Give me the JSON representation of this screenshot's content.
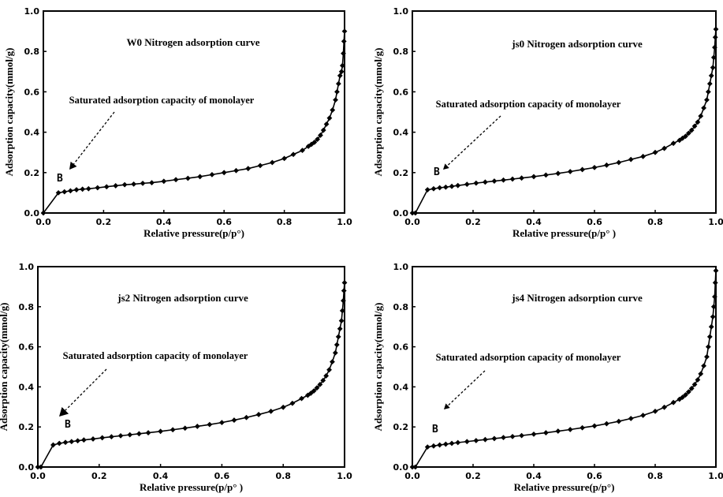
{
  "chart_data": [
    {
      "type": "line",
      "title": "W0 Nitrogen adsorption curve",
      "xlabel": "Relative pressure(p/p°)",
      "ylabel": "Adsorption capacity(mmol/g)",
      "xlim": [
        0,
        1.0
      ],
      "ylim": [
        0,
        1.0
      ],
      "xticks": [
        "0.0",
        "0.2",
        "0.4",
        "0.6",
        "0.8",
        "1.0"
      ],
      "yticks": [
        "0.0",
        "0.2",
        "0.4",
        "0.6",
        "0.8",
        "1.0"
      ],
      "annotation": "Saturated adsorption capacity of monolayer",
      "point_label": {
        "text": "B",
        "x": 0.05,
        "y": 0.1
      },
      "series": [
        {
          "x": [
            0.0,
            0.05,
            0.07,
            0.09,
            0.11,
            0.13,
            0.15,
            0.18,
            0.21,
            0.24,
            0.27,
            0.3,
            0.33,
            0.36,
            0.4,
            0.44,
            0.48,
            0.52,
            0.56,
            0.6,
            0.64,
            0.68,
            0.72,
            0.76,
            0.8,
            0.83,
            0.86,
            0.88,
            0.89,
            0.9,
            0.91,
            0.92,
            0.93,
            0.94,
            0.95,
            0.96,
            0.97,
            0.975,
            0.98,
            0.985,
            0.99,
            0.993,
            0.996,
            0.998,
            1.0
          ],
          "values": [
            0.0,
            0.1,
            0.105,
            0.11,
            0.115,
            0.118,
            0.12,
            0.125,
            0.13,
            0.135,
            0.14,
            0.143,
            0.147,
            0.15,
            0.157,
            0.165,
            0.172,
            0.18,
            0.19,
            0.2,
            0.21,
            0.22,
            0.235,
            0.25,
            0.27,
            0.29,
            0.31,
            0.33,
            0.34,
            0.35,
            0.365,
            0.385,
            0.41,
            0.44,
            0.47,
            0.51,
            0.56,
            0.6,
            0.64,
            0.68,
            0.7,
            0.73,
            0.79,
            0.85,
            0.9
          ]
        }
      ]
    },
    {
      "type": "line",
      "title": "js0  Nitrogen adsorption curve",
      "xlabel": "Relative pressure(p/p°  )",
      "ylabel": "Adsorption capacity(mmol/g)",
      "xlim": [
        0,
        1.0
      ],
      "ylim": [
        0,
        1.0
      ],
      "xticks": [
        "0.0",
        "0.2",
        "0.4",
        "0.6",
        "0.8",
        "1.0"
      ],
      "yticks": [
        "0.0",
        "0.2",
        "0.4",
        "0.6",
        "0.8",
        "1.0"
      ],
      "annotation": "Saturated adsorption capacity of monolayer",
      "point_label": {
        "text": "B",
        "x": 0.05,
        "y": 0.11
      },
      "series": [
        {
          "x": [
            0.0,
            0.01,
            0.05,
            0.07,
            0.09,
            0.11,
            0.13,
            0.15,
            0.18,
            0.21,
            0.24,
            0.27,
            0.3,
            0.33,
            0.36,
            0.4,
            0.44,
            0.48,
            0.52,
            0.56,
            0.6,
            0.64,
            0.68,
            0.72,
            0.76,
            0.8,
            0.83,
            0.86,
            0.88,
            0.89,
            0.9,
            0.91,
            0.92,
            0.93,
            0.94,
            0.95,
            0.96,
            0.97,
            0.975,
            0.98,
            0.985,
            0.99,
            0.993,
            0.996,
            0.998,
            1.0
          ],
          "values": [
            0.0,
            0.0,
            0.115,
            0.12,
            0.125,
            0.128,
            0.132,
            0.136,
            0.142,
            0.148,
            0.153,
            0.158,
            0.163,
            0.168,
            0.173,
            0.18,
            0.188,
            0.196,
            0.205,
            0.215,
            0.225,
            0.237,
            0.25,
            0.265,
            0.28,
            0.3,
            0.32,
            0.345,
            0.36,
            0.37,
            0.38,
            0.395,
            0.41,
            0.43,
            0.45,
            0.48,
            0.52,
            0.56,
            0.6,
            0.64,
            0.68,
            0.72,
            0.77,
            0.82,
            0.87,
            0.91
          ]
        }
      ]
    },
    {
      "type": "line",
      "title": "js2 Nitrogen adsorption curve",
      "xlabel": "Relative pressure(p/p°  )",
      "ylabel": "Adsorption capacity(mmol/g)",
      "xlim": [
        0,
        1.0
      ],
      "ylim": [
        0,
        1.0
      ],
      "xticks": [
        "0.0",
        "0.2",
        "0.4",
        "0.6",
        "0.8",
        "1.0"
      ],
      "yticks": [
        "0.0",
        "0.2",
        "0.4",
        "0.6",
        "0.8",
        "1.0"
      ],
      "annotation": "Saturated adsorption capacity of monolayer",
      "point_label": {
        "text": "B",
        "x": 0.05,
        "y": 0.11
      },
      "series": [
        {
          "x": [
            0.0,
            0.01,
            0.05,
            0.07,
            0.09,
            0.11,
            0.13,
            0.15,
            0.18,
            0.21,
            0.24,
            0.27,
            0.3,
            0.33,
            0.36,
            0.4,
            0.44,
            0.48,
            0.52,
            0.56,
            0.6,
            0.64,
            0.68,
            0.72,
            0.76,
            0.8,
            0.83,
            0.86,
            0.88,
            0.89,
            0.9,
            0.91,
            0.92,
            0.93,
            0.94,
            0.95,
            0.96,
            0.97,
            0.975,
            0.98,
            0.985,
            0.99,
            0.993,
            0.996,
            0.998,
            1.0
          ],
          "values": [
            0.0,
            0.0,
            0.11,
            0.118,
            0.123,
            0.127,
            0.131,
            0.135,
            0.14,
            0.146,
            0.151,
            0.156,
            0.161,
            0.166,
            0.171,
            0.178,
            0.186,
            0.194,
            0.203,
            0.212,
            0.222,
            0.234,
            0.247,
            0.262,
            0.278,
            0.298,
            0.318,
            0.342,
            0.358,
            0.368,
            0.38,
            0.395,
            0.412,
            0.432,
            0.455,
            0.485,
            0.525,
            0.57,
            0.61,
            0.65,
            0.69,
            0.73,
            0.78,
            0.83,
            0.88,
            0.92
          ]
        }
      ]
    },
    {
      "type": "line",
      "title": "js4 Nitrogen adsorption curve",
      "xlabel": "Relative pressure(p/p°)",
      "ylabel": "Adsorption capacity(mmol/g)",
      "xlim": [
        0,
        1.0
      ],
      "ylim": [
        0,
        1.0
      ],
      "xticks": [
        "0.0",
        "0.2",
        "0.4",
        "0.6",
        "0.8",
        "1.0"
      ],
      "yticks": [
        "0.0",
        "0.2",
        "0.4",
        "0.6",
        "0.8",
        "1.0"
      ],
      "annotation": "Saturated adsorption capacity of monolayer",
      "point_label": {
        "text": "B",
        "x": 0.05,
        "y": 0.1
      },
      "series": [
        {
          "x": [
            0.0,
            0.01,
            0.05,
            0.07,
            0.09,
            0.11,
            0.13,
            0.15,
            0.18,
            0.21,
            0.24,
            0.27,
            0.3,
            0.33,
            0.36,
            0.4,
            0.44,
            0.48,
            0.52,
            0.56,
            0.6,
            0.64,
            0.68,
            0.72,
            0.76,
            0.8,
            0.83,
            0.86,
            0.88,
            0.89,
            0.9,
            0.91,
            0.92,
            0.93,
            0.94,
            0.95,
            0.96,
            0.97,
            0.975,
            0.98,
            0.985,
            0.99,
            0.993,
            0.996,
            0.998,
            1.0
          ],
          "values": [
            0.0,
            0.0,
            0.1,
            0.105,
            0.11,
            0.114,
            0.118,
            0.122,
            0.127,
            0.132,
            0.137,
            0.142,
            0.147,
            0.152,
            0.157,
            0.164,
            0.171,
            0.179,
            0.187,
            0.196,
            0.205,
            0.216,
            0.228,
            0.242,
            0.258,
            0.278,
            0.298,
            0.322,
            0.338,
            0.348,
            0.36,
            0.375,
            0.392,
            0.412,
            0.435,
            0.465,
            0.505,
            0.55,
            0.6,
            0.65,
            0.7,
            0.75,
            0.8,
            0.85,
            0.92,
            0.98
          ]
        }
      ]
    }
  ]
}
